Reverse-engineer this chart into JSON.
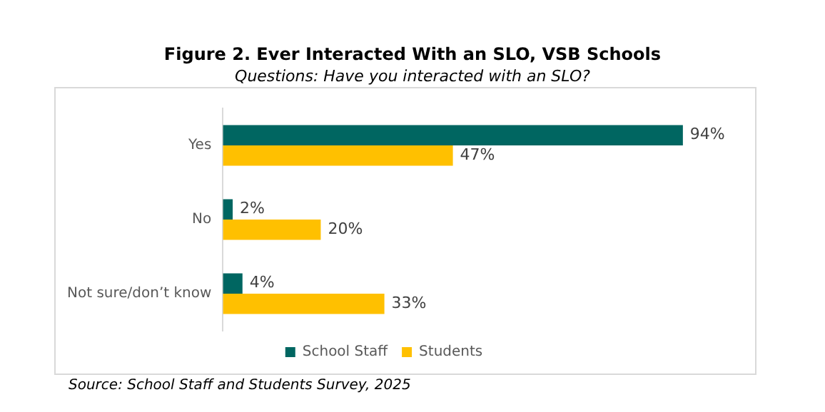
{
  "chart_data": {
    "type": "bar",
    "orientation": "horizontal",
    "title": "Figure 2. Ever Interacted With an SLO, VSB Schools",
    "subtitle": "Questions: Have you interacted with an SLO?",
    "categories": [
      "Yes",
      "No",
      "Not sure/don’t know"
    ],
    "series": [
      {
        "name": "School Staff",
        "color": "#006661",
        "values": [
          94,
          2,
          4
        ],
        "value_labels": [
          "94%",
          "2%",
          "4%"
        ]
      },
      {
        "name": "Students",
        "color": "#ffc000",
        "values": [
          47,
          20,
          33
        ],
        "value_labels": [
          "47%",
          "20%",
          "33%"
        ]
      }
    ],
    "legend": "bottom",
    "tick_labels": "y",
    "annotations": [
      "Source: School Staff and Students Survey, 2025"
    ]
  }
}
